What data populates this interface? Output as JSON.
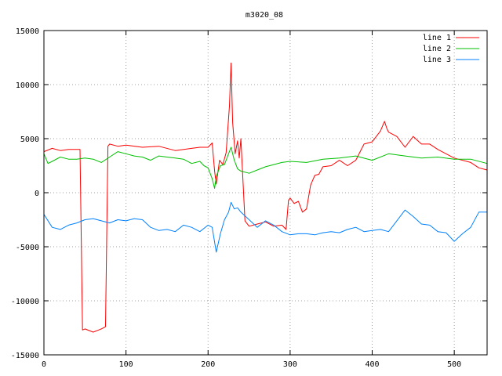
{
  "chart_data": {
    "type": "line",
    "title": "m3020_08",
    "xlabel": "",
    "ylabel": "",
    "xlim": [
      0,
      540
    ],
    "ylim": [
      -15000,
      15000
    ],
    "x_ticks": [
      0,
      100,
      200,
      300,
      400,
      500
    ],
    "y_ticks": [
      -15000,
      -10000,
      -5000,
      0,
      5000,
      10000,
      15000
    ],
    "grid": true,
    "legend_position": "top-right",
    "series": [
      {
        "name": "line 1",
        "color": "#ff0000",
        "x": [
          0,
          10,
          20,
          30,
          40,
          44,
          47,
          50,
          60,
          70,
          75,
          78,
          80,
          90,
          100,
          120,
          140,
          160,
          180,
          190,
          200,
          205,
          208,
          210,
          214,
          218,
          222,
          226,
          228,
          230,
          233,
          236,
          238,
          240,
          245,
          250,
          260,
          270,
          280,
          290,
          295,
          298,
          300,
          305,
          310,
          315,
          320,
          325,
          330,
          335,
          340,
          350,
          360,
          370,
          380,
          390,
          400,
          410,
          415,
          418,
          420,
          430,
          440,
          450,
          460,
          470,
          480,
          500,
          520,
          530,
          540
        ],
        "y": [
          3800,
          4100,
          3900,
          4000,
          4000,
          4000,
          -12700,
          -12600,
          -12900,
          -12600,
          -12400,
          4300,
          4500,
          4300,
          4400,
          4200,
          4300,
          3900,
          4100,
          4200,
          4200,
          4600,
          2000,
          800,
          3000,
          2600,
          3700,
          8000,
          12000,
          6500,
          3600,
          4800,
          3200,
          5000,
          -2600,
          -3100,
          -2900,
          -2700,
          -3100,
          -3000,
          -3400,
          -700,
          -500,
          -1000,
          -800,
          -1800,
          -1500,
          700,
          1600,
          1700,
          2400,
          2500,
          3000,
          2500,
          3000,
          4500,
          4700,
          5700,
          6600,
          5900,
          5600,
          5200,
          4200,
          5200,
          4500,
          4500,
          4000,
          3200,
          2800,
          2300,
          2100
        ]
      },
      {
        "name": "line 2",
        "color": "#00c000",
        "x": [
          0,
          5,
          10,
          20,
          30,
          40,
          50,
          60,
          70,
          80,
          90,
          100,
          110,
          120,
          130,
          140,
          150,
          160,
          170,
          180,
          190,
          195,
          200,
          205,
          208,
          210,
          215,
          220,
          225,
          228,
          232,
          236,
          240,
          250,
          260,
          270,
          280,
          290,
          300,
          320,
          340,
          360,
          380,
          400,
          420,
          440,
          460,
          480,
          500,
          520,
          540
        ],
        "y": [
          3600,
          2700,
          2900,
          3300,
          3100,
          3100,
          3200,
          3100,
          2800,
          3300,
          3800,
          3600,
          3400,
          3300,
          3000,
          3400,
          3300,
          3200,
          3100,
          2700,
          2900,
          2500,
          2300,
          1300,
          400,
          1500,
          2500,
          2600,
          3600,
          4200,
          3000,
          2200,
          2000,
          1800,
          2100,
          2400,
          2600,
          2800,
          2900,
          2800,
          3100,
          3200,
          3400,
          3000,
          3600,
          3400,
          3200,
          3300,
          3100,
          3100,
          2700
        ]
      },
      {
        "name": "line 3",
        "color": "#0080ff",
        "x": [
          0,
          10,
          20,
          30,
          40,
          50,
          60,
          70,
          80,
          90,
          100,
          110,
          120,
          130,
          140,
          150,
          160,
          170,
          180,
          190,
          200,
          205,
          210,
          215,
          220,
          225,
          228,
          232,
          236,
          240,
          250,
          260,
          270,
          280,
          290,
          300,
          310,
          320,
          330,
          340,
          350,
          360,
          370,
          380,
          390,
          400,
          410,
          420,
          430,
          440,
          450,
          460,
          470,
          480,
          490,
          500,
          510,
          520,
          530,
          540
        ],
        "y": [
          -2000,
          -3200,
          -3400,
          -3000,
          -2800,
          -2500,
          -2400,
          -2600,
          -2800,
          -2500,
          -2600,
          -2400,
          -2500,
          -3200,
          -3500,
          -3400,
          -3600,
          -3000,
          -3200,
          -3600,
          -3000,
          -3200,
          -5500,
          -3800,
          -2500,
          -1800,
          -900,
          -1500,
          -1400,
          -1800,
          -2500,
          -3200,
          -2600,
          -3000,
          -3600,
          -3900,
          -3800,
          -3800,
          -3900,
          -3700,
          -3600,
          -3700,
          -3400,
          -3200,
          -3600,
          -3500,
          -3400,
          -3600,
          -2600,
          -1600,
          -2200,
          -2900,
          -3000,
          -3600,
          -3700,
          -4500,
          -3800,
          -3200,
          -1800,
          -1800
        ]
      }
    ]
  }
}
